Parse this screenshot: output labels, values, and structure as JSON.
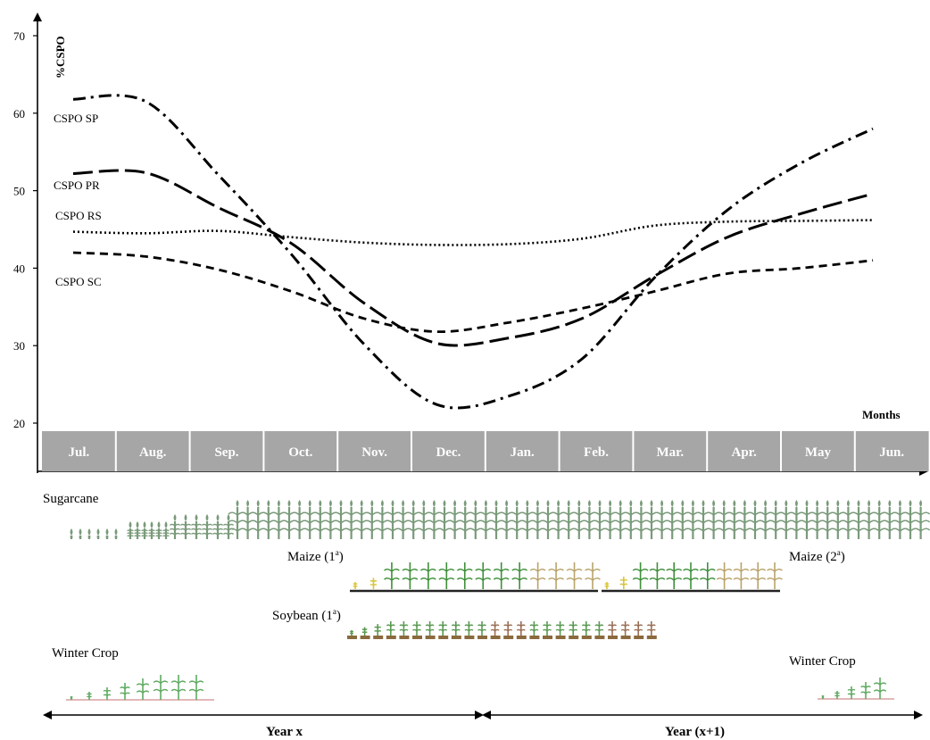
{
  "chart_data": {
    "type": "line",
    "ylabel": "%CSPO",
    "xlabel": "Months",
    "ylim": [
      20,
      70
    ],
    "yticks": [
      20,
      30,
      40,
      50,
      60,
      70
    ],
    "categories": [
      "Jul.",
      "Aug.",
      "Sep.",
      "Oct.",
      "Nov.",
      "Dec.",
      "Jan.",
      "Feb.",
      "Mar.",
      "Apr.",
      "May",
      "Jun."
    ],
    "series": [
      {
        "name": "CSPO SP",
        "style": "dash-dot",
        "values": [
          61.8,
          61.5,
          52.0,
          41.8,
          30.2,
          22.4,
          23.5,
          28.3,
          38.8,
          47.5,
          53.5,
          58.0
        ]
      },
      {
        "name": "CSPO PR",
        "style": "long-dash",
        "values": [
          52.2,
          52.3,
          47.8,
          43.2,
          35.5,
          30.3,
          31.0,
          33.5,
          39.0,
          44.0,
          47.0,
          49.6
        ]
      },
      {
        "name": "CSPO RS",
        "style": "dotted",
        "values": [
          44.7,
          44.5,
          44.8,
          44.0,
          43.3,
          43.0,
          43.1,
          43.8,
          45.5,
          46.0,
          46.1,
          46.2
        ]
      },
      {
        "name": "CSPO SC",
        "style": "dashed",
        "values": [
          42.0,
          41.5,
          39.8,
          37.0,
          33.5,
          31.8,
          33.0,
          34.8,
          37.0,
          39.3,
          40.0,
          41.0
        ]
      }
    ],
    "grid": false,
    "legend": "inline-left"
  },
  "crops": {
    "sugarcane": "Sugarcane",
    "maize1_prefix": "Maize (1",
    "maize1_sup": "a",
    "maize2_prefix": "Maize (2",
    "maize2_sup": "a",
    "soybean_prefix": "Soybean (1",
    "soybean_sup": "a",
    "winter_left": "Winter Crop",
    "winter_right": "Winter Crop"
  },
  "years": {
    "year_x": "Year x",
    "year_x1": "Year (x+1)"
  },
  "colors": {
    "month_bar": "#a6a6a6",
    "month_text": "#ffffff",
    "line": "#000000",
    "crop_green": "#3f8f3a",
    "crop_dry": "#b8a36a",
    "soil": "#8b6a3e",
    "sugarcane": "#7a9a7a"
  }
}
